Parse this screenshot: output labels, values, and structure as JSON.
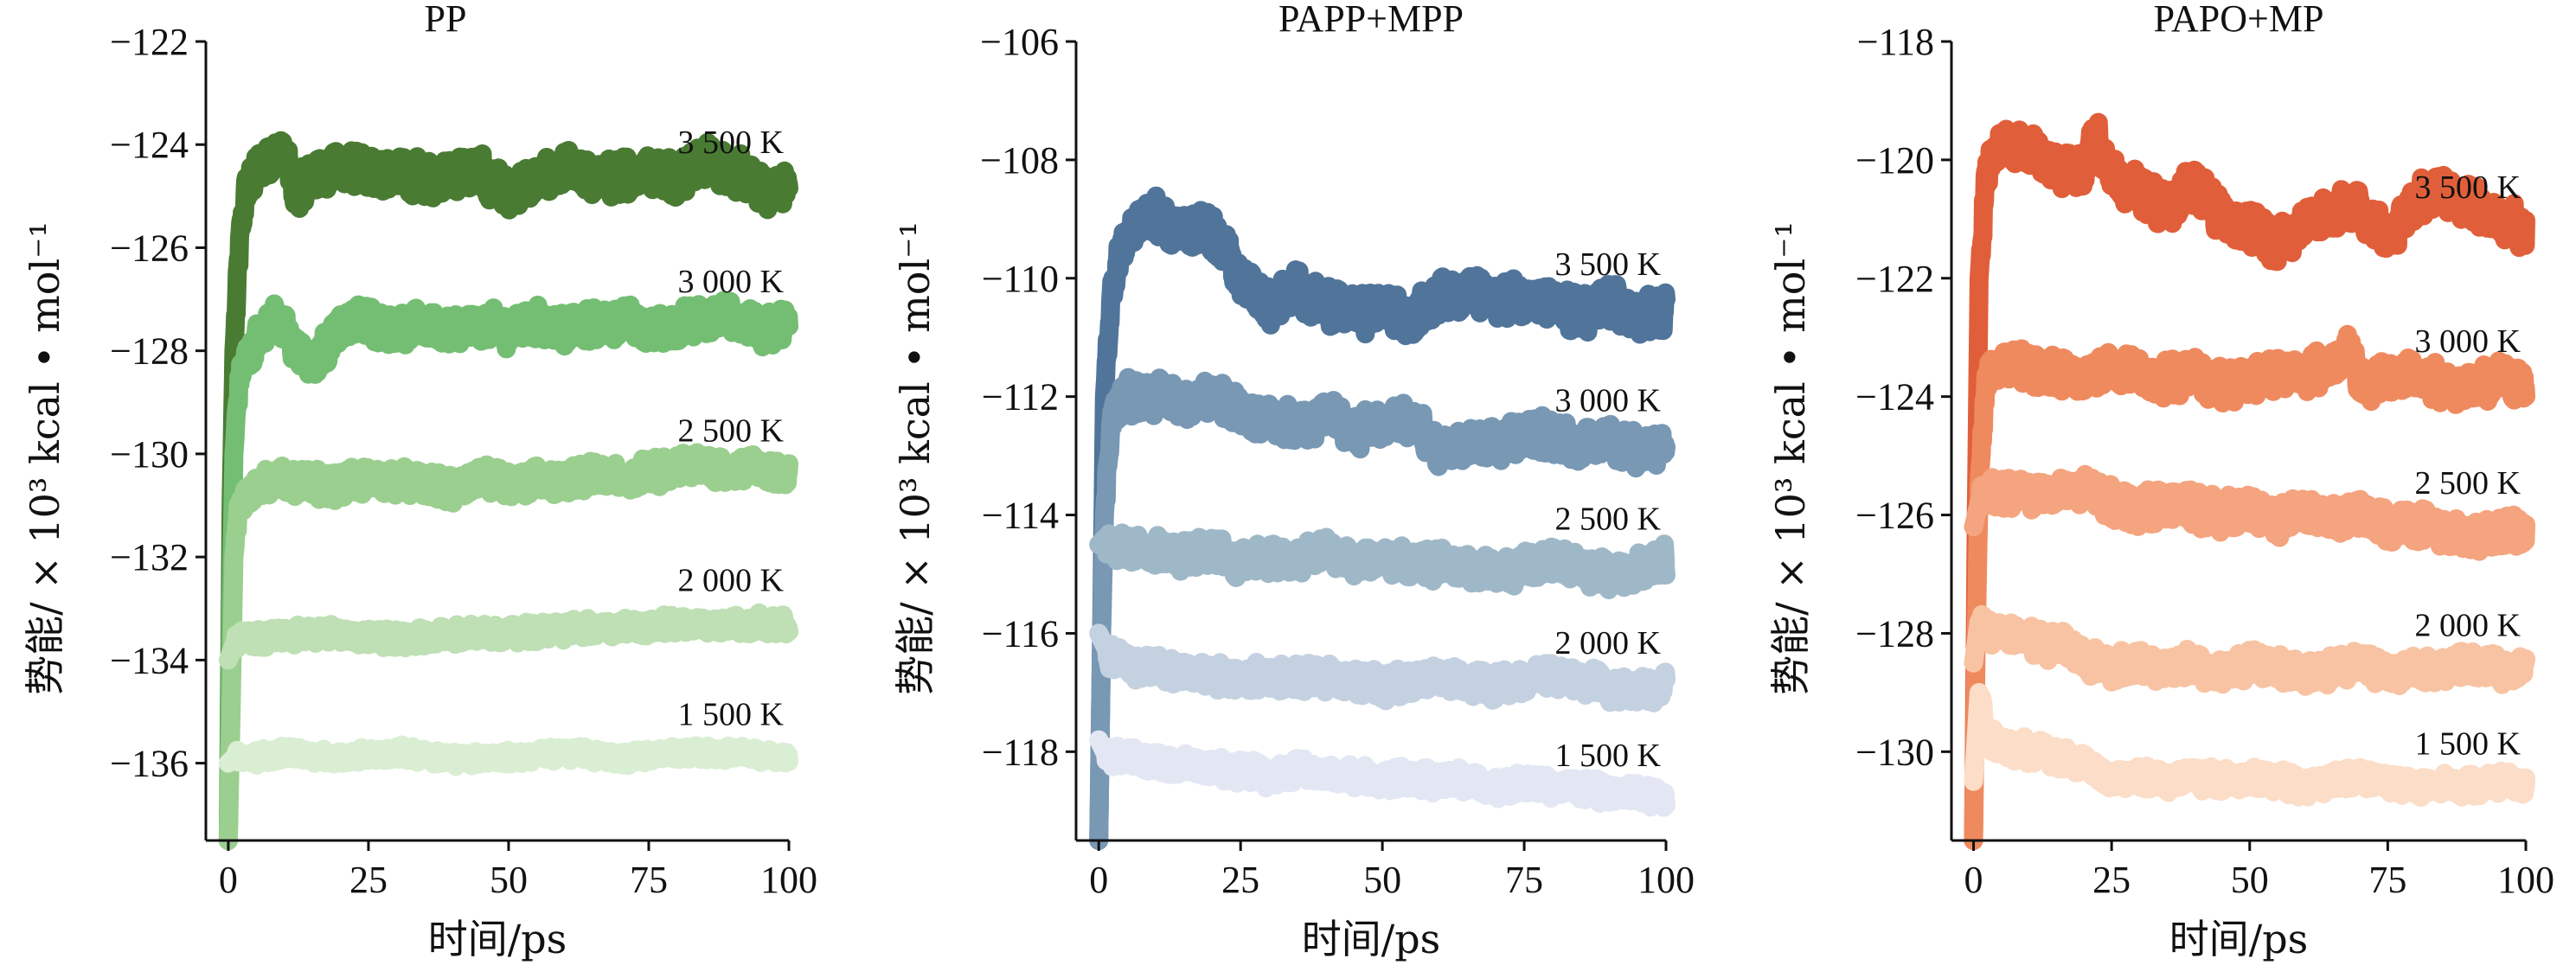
{
  "chart_data": [
    {
      "type": "line",
      "title": "PP",
      "xlabel": "时间/ps",
      "ylabel": "势能/ × 10³ kcal • mol⁻¹",
      "xlim": [
        -4,
        100
      ],
      "ylim": [
        -137.5,
        -122
      ],
      "xticks": [
        0,
        25,
        50,
        75,
        100
      ],
      "yticks": [
        -136,
        -134,
        -132,
        -130,
        -128,
        -126,
        -124,
        -122
      ],
      "series": [
        {
          "name": "3 500 K",
          "color": "#4a7b33",
          "x": [
            0,
            0.5,
            1,
            2,
            3,
            5,
            8,
            10,
            12,
            15,
            20,
            25,
            30,
            35,
            40,
            45,
            50,
            55,
            60,
            65,
            70,
            75,
            80,
            85,
            90,
            95,
            100
          ],
          "y": [
            -137.5,
            -131,
            -128,
            -126,
            -125,
            -124.5,
            -124.2,
            -124.2,
            -125,
            -124.6,
            -124.4,
            -124.6,
            -124.5,
            -124.7,
            -124.5,
            -124.6,
            -124.9,
            -124.7,
            -124.5,
            -124.7,
            -124.6,
            -124.5,
            -124.6,
            -124.3,
            -124.5,
            -124.9,
            -124.8
          ]
        },
        {
          "name": "3 000 K",
          "color": "#74be74",
          "x": [
            0,
            0.5,
            1,
            2,
            3,
            5,
            8,
            10,
            12,
            15,
            20,
            25,
            30,
            35,
            40,
            45,
            50,
            55,
            60,
            65,
            70,
            75,
            80,
            85,
            90,
            95,
            100
          ],
          "y": [
            -137.5,
            -133,
            -130,
            -128.5,
            -128.2,
            -127.8,
            -127.3,
            -127.6,
            -128,
            -128.3,
            -127.5,
            -127.4,
            -127.6,
            -127.5,
            -127.6,
            -127.5,
            -127.6,
            -127.4,
            -127.6,
            -127.5,
            -127.4,
            -127.6,
            -127.5,
            -127.4,
            -127.3,
            -127.6,
            -127.5
          ]
        },
        {
          "name": "2 500 K",
          "color": "#9bcf8f",
          "x": [
            0,
            0.5,
            1,
            2,
            3,
            5,
            10,
            15,
            20,
            25,
            30,
            35,
            40,
            45,
            50,
            55,
            60,
            65,
            70,
            75,
            80,
            85,
            90,
            95,
            100
          ],
          "y": [
            -137.5,
            -135,
            -132,
            -131,
            -130.8,
            -130.6,
            -130.5,
            -130.6,
            -130.6,
            -130.5,
            -130.5,
            -130.6,
            -130.7,
            -130.5,
            -130.6,
            -130.5,
            -130.6,
            -130.4,
            -130.5,
            -130.4,
            -130.3,
            -130.2,
            -130.3,
            -130.3,
            -130.4
          ]
        },
        {
          "name": "2 000 K",
          "color": "#bfdfb5",
          "x": [
            0,
            1,
            2,
            5,
            10,
            20,
            30,
            40,
            50,
            60,
            70,
            80,
            90,
            100
          ],
          "y": [
            -134,
            -133.7,
            -133.6,
            -133.6,
            -133.5,
            -133.5,
            -133.6,
            -133.5,
            -133.5,
            -133.4,
            -133.4,
            -133.3,
            -133.3,
            -133.3
          ]
        },
        {
          "name": "1 500 K",
          "color": "#daeed4",
          "x": [
            0,
            1,
            2,
            5,
            10,
            20,
            30,
            40,
            50,
            60,
            70,
            80,
            90,
            100
          ],
          "y": [
            -136,
            -135.9,
            -135.9,
            -135.9,
            -135.8,
            -135.9,
            -135.8,
            -135.9,
            -135.9,
            -135.8,
            -135.9,
            -135.8,
            -135.8,
            -135.9
          ]
        }
      ]
    },
    {
      "type": "line",
      "title": "PAPP+MPP",
      "xlabel": "时间/ps",
      "ylabel": "势能/ × 10³ kcal • mol⁻¹",
      "xlim": [
        -4,
        100
      ],
      "ylim": [
        -119.5,
        -106
      ],
      "xticks": [
        0,
        25,
        50,
        75,
        100
      ],
      "yticks": [
        -118,
        -116,
        -114,
        -112,
        -110,
        -108,
        -106
      ],
      "series": [
        {
          "name": "3 500 K",
          "color": "#51749a",
          "x": [
            0,
            0.5,
            1,
            2,
            3,
            5,
            8,
            10,
            12,
            15,
            18,
            20,
            25,
            30,
            35,
            40,
            45,
            50,
            55,
            60,
            65,
            70,
            75,
            80,
            85,
            90,
            95,
            100
          ],
          "y": [
            -119.5,
            -116,
            -112,
            -110.5,
            -109.8,
            -109.3,
            -109,
            -108.9,
            -109.1,
            -109.2,
            -109.1,
            -109.2,
            -110,
            -110.5,
            -110.2,
            -110.4,
            -110.6,
            -110.5,
            -110.7,
            -110.3,
            -110.2,
            -110.4,
            -110.3,
            -110.5,
            -110.6,
            -110.4,
            -110.7,
            -110.5
          ]
        },
        {
          "name": "3 000 K",
          "color": "#7898b4",
          "x": [
            0,
            0.5,
            1,
            2,
            3,
            5,
            10,
            15,
            20,
            25,
            30,
            35,
            40,
            45,
            50,
            55,
            60,
            65,
            70,
            75,
            80,
            85,
            90,
            95,
            100
          ],
          "y": [
            -119.5,
            -116,
            -114,
            -112.5,
            -112.2,
            -112,
            -112,
            -112.1,
            -112,
            -112.3,
            -112.4,
            -112.5,
            -112.3,
            -112.6,
            -112.5,
            -112.4,
            -112.9,
            -112.7,
            -112.8,
            -112.6,
            -112.7,
            -112.8,
            -112.7,
            -112.9,
            -112.8
          ]
        },
        {
          "name": "2 500 K",
          "color": "#9fb8c8",
          "x": [
            0,
            1,
            2,
            5,
            10,
            15,
            20,
            25,
            30,
            35,
            40,
            45,
            50,
            55,
            60,
            65,
            70,
            75,
            80,
            85,
            90,
            95,
            100
          ],
          "y": [
            -114.5,
            -114.4,
            -114.6,
            -114.6,
            -114.6,
            -114.7,
            -114.6,
            -114.8,
            -114.7,
            -114.8,
            -114.6,
            -114.8,
            -114.7,
            -114.9,
            -114.8,
            -114.9,
            -115,
            -114.9,
            -114.8,
            -114.9,
            -115,
            -114.9,
            -114.8
          ]
        },
        {
          "name": "2 000 K",
          "color": "#c4d1e1",
          "x": [
            0,
            1,
            2,
            5,
            10,
            15,
            20,
            25,
            30,
            35,
            40,
            45,
            50,
            55,
            60,
            65,
            70,
            75,
            80,
            85,
            90,
            95,
            100
          ],
          "y": [
            -116,
            -116.2,
            -116.4,
            -116.5,
            -116.6,
            -116.7,
            -116.7,
            -116.8,
            -116.7,
            -116.8,
            -116.7,
            -116.8,
            -116.9,
            -116.8,
            -116.7,
            -116.8,
            -116.9,
            -116.8,
            -116.7,
            -116.8,
            -116.9,
            -117,
            -116.9
          ]
        },
        {
          "name": "1 500 K",
          "color": "#e3e7f3",
          "x": [
            0,
            1,
            2,
            5,
            10,
            15,
            20,
            25,
            30,
            35,
            40,
            45,
            50,
            55,
            60,
            65,
            70,
            75,
            80,
            85,
            90,
            95,
            100
          ],
          "y": [
            -117.8,
            -118,
            -118.1,
            -118.1,
            -118.2,
            -118.2,
            -118.3,
            -118.3,
            -118.4,
            -118.3,
            -118.4,
            -118.4,
            -118.5,
            -118.4,
            -118.5,
            -118.5,
            -118.6,
            -118.5,
            -118.6,
            -118.6,
            -118.7,
            -118.7,
            -118.8
          ]
        }
      ]
    },
    {
      "type": "line",
      "title": "PAPO+MP",
      "xlabel": "时间/ps",
      "ylabel": "势能/ × 10³ kcal • mol⁻¹",
      "xlim": [
        -4,
        100
      ],
      "ylim": [
        -131.5,
        -118
      ],
      "xticks": [
        0,
        25,
        50,
        75,
        100
      ],
      "yticks": [
        -130,
        -128,
        -126,
        -124,
        -122,
        -120,
        -118
      ],
      "series": [
        {
          "name": "3 500 K",
          "color": "#e05f3a",
          "x": [
            0,
            0.5,
            1,
            2,
            3,
            5,
            8,
            10,
            15,
            20,
            22,
            25,
            30,
            35,
            40,
            45,
            50,
            55,
            60,
            65,
            70,
            75,
            80,
            85,
            90,
            95,
            100
          ],
          "y": [
            -131.5,
            -126,
            -122,
            -120.5,
            -119.9,
            -119.7,
            -119.8,
            -119.8,
            -120.1,
            -120.2,
            -119.5,
            -120.3,
            -120.5,
            -120.8,
            -120.4,
            -121,
            -121.2,
            -121.4,
            -121.1,
            -120.9,
            -120.8,
            -121.3,
            -120.7,
            -120.5,
            -120.8,
            -121,
            -121.2
          ]
        },
        {
          "name": "3 000 K",
          "color": "#ef8a5f",
          "x": [
            0,
            0.5,
            1,
            2,
            3,
            5,
            10,
            15,
            20,
            25,
            30,
            35,
            40,
            45,
            50,
            55,
            60,
            65,
            68,
            70,
            75,
            80,
            85,
            90,
            95,
            100
          ],
          "y": [
            -131.5,
            -128,
            -125.5,
            -124,
            -123.6,
            -123.5,
            -123.5,
            -123.6,
            -123.7,
            -123.5,
            -123.6,
            -123.7,
            -123.6,
            -123.8,
            -123.7,
            -123.6,
            -123.6,
            -123.5,
            -123.1,
            -123.8,
            -123.7,
            -123.6,
            -123.8,
            -123.9,
            -123.7,
            -123.8
          ]
        },
        {
          "name": "2 500 K",
          "color": "#f4a47e",
          "x": [
            0,
            1,
            2,
            5,
            10,
            15,
            20,
            25,
            30,
            35,
            40,
            45,
            50,
            55,
            60,
            65,
            70,
            75,
            80,
            85,
            90,
            95,
            100
          ],
          "y": [
            -126.2,
            -125.8,
            -125.6,
            -125.6,
            -125.6,
            -125.7,
            -125.6,
            -125.8,
            -125.9,
            -125.8,
            -125.9,
            -126,
            -125.9,
            -126.1,
            -125.9,
            -126.1,
            -126,
            -126.2,
            -126.1,
            -126.3,
            -126.4,
            -126.3,
            -126.2
          ]
        },
        {
          "name": "2 000 K",
          "color": "#f8c3a2",
          "x": [
            0,
            1,
            2,
            5,
            10,
            15,
            20,
            25,
            30,
            35,
            40,
            45,
            50,
            55,
            60,
            65,
            70,
            75,
            80,
            85,
            90,
            95,
            100
          ],
          "y": [
            -128.5,
            -127.8,
            -127.9,
            -128,
            -128.1,
            -128.2,
            -128.4,
            -128.6,
            -128.5,
            -128.6,
            -128.5,
            -128.7,
            -128.5,
            -128.6,
            -128.7,
            -128.6,
            -128.5,
            -128.7,
            -128.6,
            -128.6,
            -128.5,
            -128.6,
            -128.6
          ]
        },
        {
          "name": "1 500 K",
          "color": "#fbddc8",
          "x": [
            0,
            1,
            2,
            3,
            5,
            10,
            15,
            20,
            25,
            30,
            35,
            40,
            45,
            50,
            55,
            60,
            65,
            70,
            75,
            80,
            85,
            90,
            95,
            100
          ],
          "y": [
            -130.5,
            -129,
            -129.5,
            -129.8,
            -129.9,
            -130,
            -130.1,
            -130.2,
            -130.5,
            -130.4,
            -130.5,
            -130.4,
            -130.5,
            -130.4,
            -130.5,
            -130.6,
            -130.5,
            -130.4,
            -130.5,
            -130.6,
            -130.5,
            -130.6,
            -130.5,
            -130.6
          ]
        }
      ]
    }
  ]
}
